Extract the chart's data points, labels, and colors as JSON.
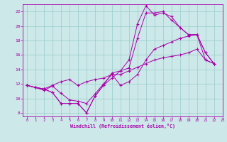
{
  "xlabel": "Windchill (Refroidissement éolien,°C)",
  "xlim": [
    -0.5,
    23
  ],
  "ylim": [
    7.5,
    23
  ],
  "xticks": [
    0,
    1,
    2,
    3,
    4,
    5,
    6,
    7,
    8,
    9,
    10,
    11,
    12,
    13,
    14,
    15,
    16,
    17,
    18,
    19,
    20,
    21,
    22,
    23
  ],
  "yticks": [
    8,
    10,
    12,
    14,
    16,
    18,
    20,
    22
  ],
  "bg_color": "#cce8e8",
  "line_color": "#aa00aa",
  "grid_color": "#99cccc",
  "series": [
    [
      11.8,
      11.5,
      11.3,
      10.8,
      9.3,
      9.3,
      9.3,
      8.0,
      10.3,
      11.8,
      13.5,
      13.8,
      14.2,
      18.3,
      21.8,
      21.8,
      22.0,
      20.8,
      19.8,
      18.8,
      18.8,
      16.3,
      14.8
    ],
    [
      11.8,
      11.5,
      11.1,
      11.7,
      10.7,
      9.8,
      9.6,
      9.3,
      10.6,
      12.0,
      13.3,
      11.8,
      12.3,
      13.3,
      15.3,
      16.8,
      17.3,
      17.8,
      18.3,
      18.6,
      18.8,
      15.3,
      14.8
    ],
    [
      11.8,
      11.5,
      11.3,
      10.8,
      9.3,
      9.3,
      9.3,
      8.0,
      10.3,
      11.8,
      12.8,
      13.8,
      15.3,
      20.3,
      22.8,
      21.5,
      21.8,
      21.3,
      19.8,
      18.8,
      18.8,
      16.3,
      14.8
    ],
    [
      11.8,
      11.5,
      11.3,
      11.8,
      12.3,
      12.6,
      11.8,
      12.3,
      12.6,
      12.8,
      13.3,
      13.3,
      13.8,
      14.3,
      14.8,
      15.3,
      15.6,
      15.8,
      16.0,
      16.3,
      16.8,
      15.3,
      14.8
    ]
  ]
}
